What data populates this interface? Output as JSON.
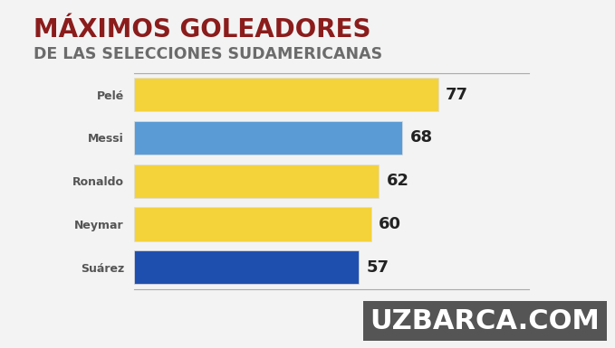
{
  "chart_data": {
    "type": "bar",
    "orientation": "horizontal",
    "title": "MÁXIMOS GOLEADORES",
    "subtitle": "DE LAS SELECCIONES SUDAMERICANAS",
    "categories": [
      "Pelé",
      "Messi",
      "Ronaldo",
      "Neymar",
      "Suárez"
    ],
    "values": [
      77,
      68,
      62,
      60,
      57
    ],
    "colors": [
      "#f4d23a",
      "#5b9bd5",
      "#f4d23a",
      "#f4d23a",
      "#1f4fae"
    ],
    "xlim": [
      0,
      100
    ],
    "data_labels": true,
    "tick_labels": "y",
    "grid": false,
    "annotations": [
      "UZBARCA.COM"
    ]
  }
}
